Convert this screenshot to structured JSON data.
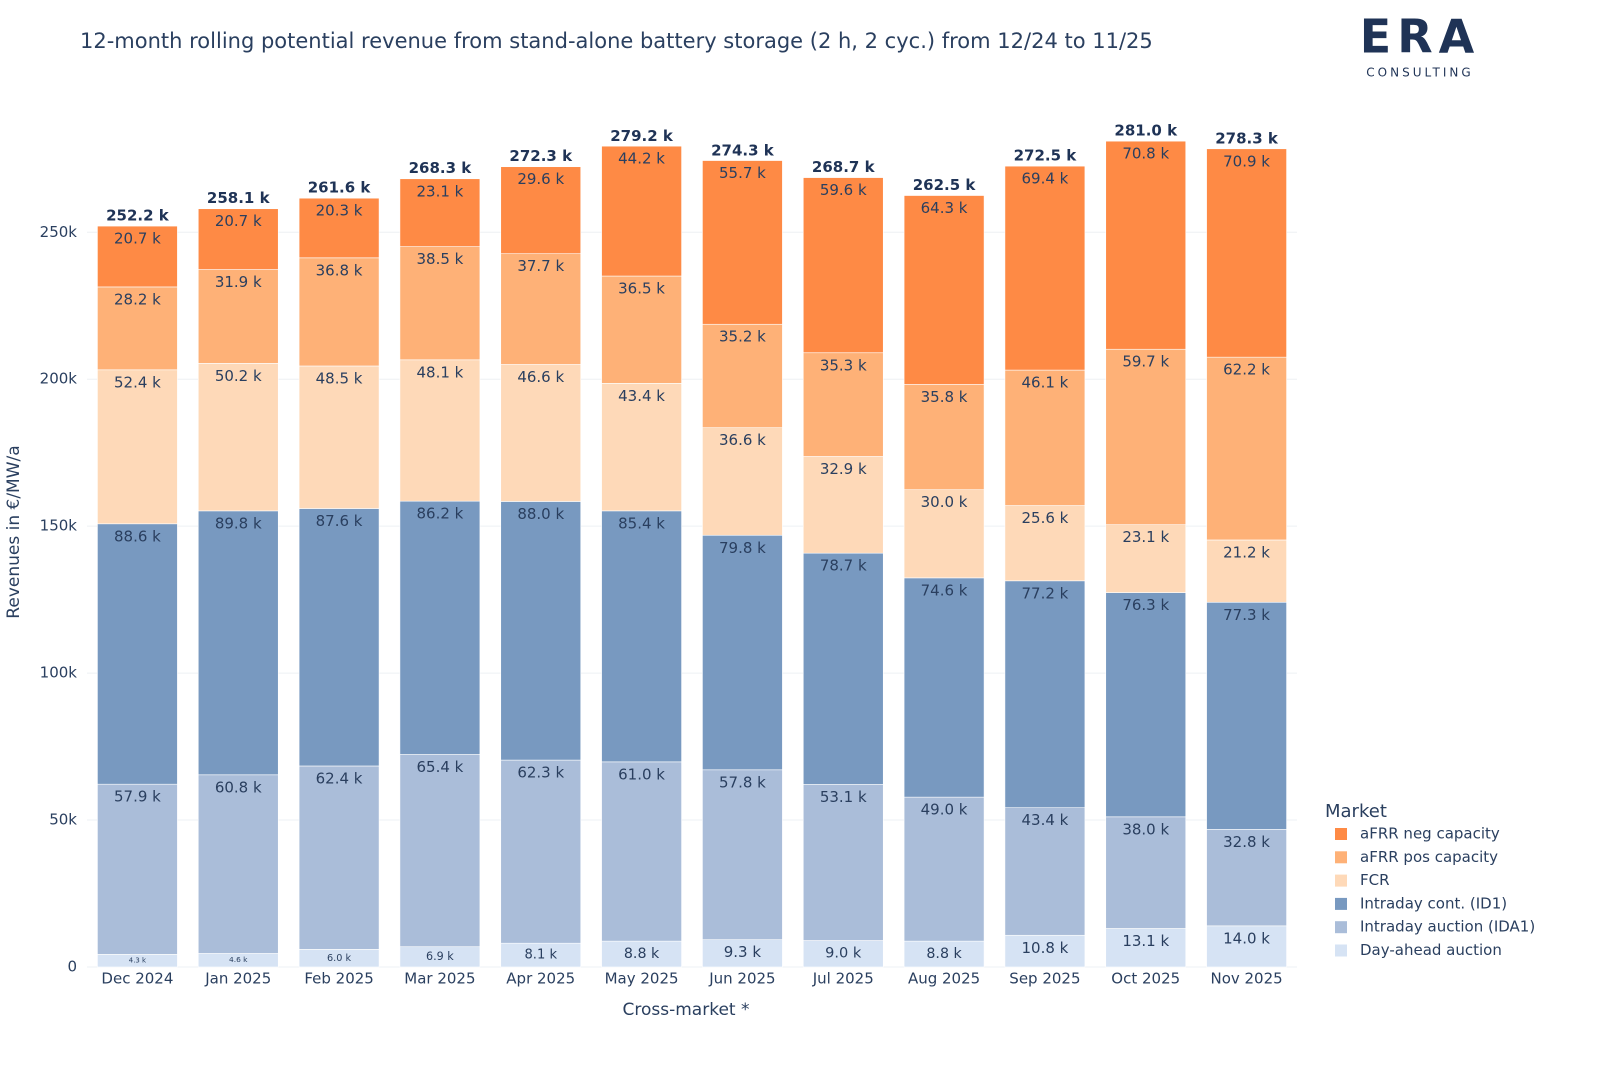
{
  "chart_data": {
    "type": "stacked_bar",
    "title": "12-month rolling potential revenue from stand-alone battery storage (2 h, 2 cyc.) from 12/24 to 11/25",
    "logo": {
      "text": "ERA",
      "subtitle": "CONSULTING"
    },
    "x_label": "Cross-market *",
    "y_label": "Revenues in €/MW/a",
    "legend_title": "Market",
    "legend_position": "right",
    "grid": true,
    "categories": [
      "Dec 2024",
      "Jan 2025",
      "Feb 2025",
      "Mar 2025",
      "Apr 2025",
      "May 2025",
      "Jun 2025",
      "Jul 2025",
      "Aug 2025",
      "Sep 2025",
      "Oct 2025",
      "Nov 2025"
    ],
    "ylim": [
      0,
      295000
    ],
    "yticks": [
      0,
      {
        "value": 50000,
        "label": "50k"
      },
      {
        "value": 100000,
        "label": "100k"
      },
      {
        "value": 150000,
        "label": "150k"
      },
      {
        "value": 200000,
        "label": "200k"
      },
      {
        "value": 250000,
        "label": "250k"
      }
    ],
    "series": [
      {
        "name": "Day-ahead auction",
        "color": "#d6e3f4",
        "values": [
          4300,
          4600,
          6000,
          6900,
          8100,
          8800,
          9300,
          9000,
          8800,
          10800,
          13100,
          14000
        ],
        "value_labels": [
          "4.3 k",
          "4.6 k",
          "6.0 k",
          "6.9 k",
          "8.1 k",
          "8.8 k",
          "9.3 k",
          "9.0 k",
          "8.8 k",
          "10.8 k",
          "13.1 k",
          "14.0 k"
        ]
      },
      {
        "name": "Intraday auction (IDA1)",
        "color": "#aabdd9",
        "values": [
          57900,
          60800,
          62400,
          65400,
          62300,
          61000,
          57800,
          53100,
          49000,
          43400,
          38000,
          32800
        ],
        "value_labels": [
          "57.9 k",
          "60.8 k",
          "62.4 k",
          "65.4 k",
          "62.3 k",
          "61.0 k",
          "57.8 k",
          "53.1 k",
          "49.0 k",
          "43.4 k",
          "38.0 k",
          "32.8 k"
        ]
      },
      {
        "name": "Intraday cont. (ID1)",
        "color": "#7899c0",
        "values": [
          88600,
          89800,
          87600,
          86200,
          88000,
          85400,
          79800,
          78700,
          74600,
          77200,
          76300,
          77300
        ],
        "value_labels": [
          "88.6 k",
          "89.8 k",
          "87.6 k",
          "86.2 k",
          "88.0 k",
          "85.4 k",
          "79.8 k",
          "78.7 k",
          "74.6 k",
          "77.2 k",
          "76.3 k",
          "77.3 k"
        ]
      },
      {
        "name": "FCR",
        "color": "#fed9b8",
        "values": [
          52400,
          50200,
          48500,
          48100,
          46600,
          43400,
          36600,
          32900,
          30000,
          25600,
          23100,
          21200
        ],
        "value_labels": [
          "52.4 k",
          "50.2 k",
          "48.5 k",
          "48.1 k",
          "46.6 k",
          "43.4 k",
          "36.6 k",
          "32.9 k",
          "30.0 k",
          "25.6 k",
          "23.1 k",
          "21.2 k"
        ]
      },
      {
        "name": "aFRR pos capacity",
        "color": "#feb177",
        "values": [
          28200,
          31900,
          36800,
          38500,
          37700,
          36500,
          35200,
          35300,
          35800,
          46100,
          59700,
          62200
        ],
        "value_labels": [
          "28.2 k",
          "31.9 k",
          "36.8 k",
          "38.5 k",
          "37.7 k",
          "36.5 k",
          "35.2 k",
          "35.3 k",
          "35.8 k",
          "46.1 k",
          "59.7 k",
          "62.2 k"
        ]
      },
      {
        "name": "aFRR neg capacity",
        "color": "#fe8a45",
        "values": [
          20700,
          20700,
          20300,
          23100,
          29600,
          44200,
          55700,
          59600,
          64300,
          69400,
          70800,
          70900
        ],
        "value_labels": [
          "20.7 k",
          "20.7 k",
          "20.3 k",
          "23.1 k",
          "29.6 k",
          "44.2 k",
          "55.7 k",
          "59.6 k",
          "64.3 k",
          "69.4 k",
          "70.8 k",
          "70.9 k"
        ]
      }
    ],
    "totals": [
      252200,
      258100,
      261600,
      268300,
      272300,
      279200,
      274300,
      268700,
      262500,
      272500,
      281000,
      278300
    ],
    "total_labels": [
      "252.2 k",
      "258.1 k",
      "261.6 k",
      "268.3 k",
      "272.3 k",
      "279.2 k",
      "274.3 k",
      "268.7 k",
      "262.5 k",
      "272.5 k",
      "281.0 k",
      "278.3 k"
    ]
  }
}
